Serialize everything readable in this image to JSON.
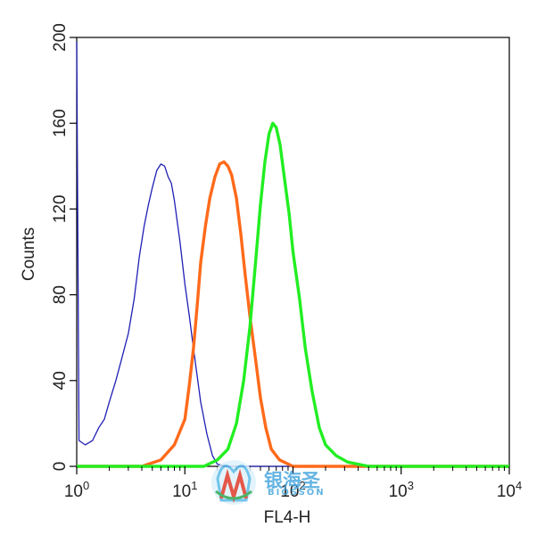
{
  "chart_data": {
    "type": "line",
    "title": "",
    "xlabel": "FL4-H",
    "ylabel": "Counts",
    "x_scale": "log",
    "xlim": [
      1,
      10000
    ],
    "ylim": [
      0,
      200
    ],
    "x_ticks": [
      {
        "base": "10",
        "exp": "0"
      },
      {
        "base": "10",
        "exp": "1"
      },
      {
        "base": "10",
        "exp": "2"
      },
      {
        "base": "10",
        "exp": "3"
      },
      {
        "base": "10",
        "exp": "4"
      }
    ],
    "y_ticks": [
      "0",
      "40",
      "80",
      "120",
      "160",
      "200"
    ],
    "y_tick_values": [
      0,
      40,
      80,
      120,
      160,
      200
    ],
    "grid": false,
    "legend": "none",
    "series": [
      {
        "color": "#1f1fb4",
        "points": [
          [
            1.0,
            198
          ],
          [
            1.05,
            12
          ],
          [
            1.2,
            10
          ],
          [
            1.4,
            12
          ],
          [
            1.6,
            18
          ],
          [
            1.8,
            22
          ],
          [
            2.0,
            30
          ],
          [
            2.3,
            40
          ],
          [
            2.6,
            50
          ],
          [
            3.0,
            62
          ],
          [
            3.4,
            78
          ],
          [
            3.8,
            98
          ],
          [
            4.2,
            112
          ],
          [
            4.6,
            122
          ],
          [
            5.0,
            130
          ],
          [
            5.5,
            138
          ],
          [
            6.0,
            141
          ],
          [
            6.5,
            140
          ],
          [
            7.0,
            135
          ],
          [
            7.5,
            132
          ],
          [
            8.0,
            124
          ],
          [
            9.0,
            105
          ],
          [
            10.0,
            85
          ],
          [
            11.0,
            70
          ],
          [
            12.0,
            55
          ],
          [
            13.0,
            42
          ],
          [
            14.0,
            30
          ],
          [
            16.0,
            15
          ],
          [
            18.0,
            5
          ],
          [
            20.0,
            1
          ],
          [
            25.0,
            0
          ],
          [
            10000.0,
            0
          ]
        ]
      },
      {
        "color": "#ff6a1a",
        "points": [
          [
            1.0,
            0
          ],
          [
            4.0,
            0
          ],
          [
            6.0,
            3
          ],
          [
            8.0,
            10
          ],
          [
            10.0,
            22
          ],
          [
            11.0,
            38
          ],
          [
            12.0,
            55
          ],
          [
            13.0,
            75
          ],
          [
            14.0,
            95
          ],
          [
            15.5,
            112
          ],
          [
            17.0,
            125
          ],
          [
            19.0,
            135
          ],
          [
            21.0,
            141
          ],
          [
            23.0,
            142
          ],
          [
            25.0,
            140
          ],
          [
            27.0,
            136
          ],
          [
            30.0,
            125
          ],
          [
            33.0,
            108
          ],
          [
            36.0,
            90
          ],
          [
            40.0,
            70
          ],
          [
            45.0,
            50
          ],
          [
            50.0,
            32
          ],
          [
            56.0,
            18
          ],
          [
            63.0,
            8
          ],
          [
            75.0,
            3
          ],
          [
            100.0,
            0
          ],
          [
            10000.0,
            0
          ]
        ]
      },
      {
        "color": "#22ee22",
        "points": [
          [
            1.0,
            0
          ],
          [
            15.0,
            0
          ],
          [
            20.0,
            3
          ],
          [
            25.0,
            8
          ],
          [
            30.0,
            20
          ],
          [
            35.0,
            40
          ],
          [
            40.0,
            65
          ],
          [
            45.0,
            95
          ],
          [
            50.0,
            122
          ],
          [
            55.0,
            142
          ],
          [
            60.0,
            155
          ],
          [
            65.0,
            160
          ],
          [
            70.0,
            158
          ],
          [
            76.0,
            150
          ],
          [
            83.0,
            135
          ],
          [
            92.0,
            118
          ],
          [
            100.0,
            100
          ],
          [
            115.0,
            78
          ],
          [
            130.0,
            55
          ],
          [
            150.0,
            35
          ],
          [
            175.0,
            18
          ],
          [
            200.0,
            10
          ],
          [
            250.0,
            5
          ],
          [
            320.0,
            2
          ],
          [
            500.0,
            0
          ],
          [
            10000.0,
            0
          ]
        ]
      }
    ]
  },
  "watermark": {
    "cn_text": "银海圣",
    "en_text": "BIOSSON"
  }
}
